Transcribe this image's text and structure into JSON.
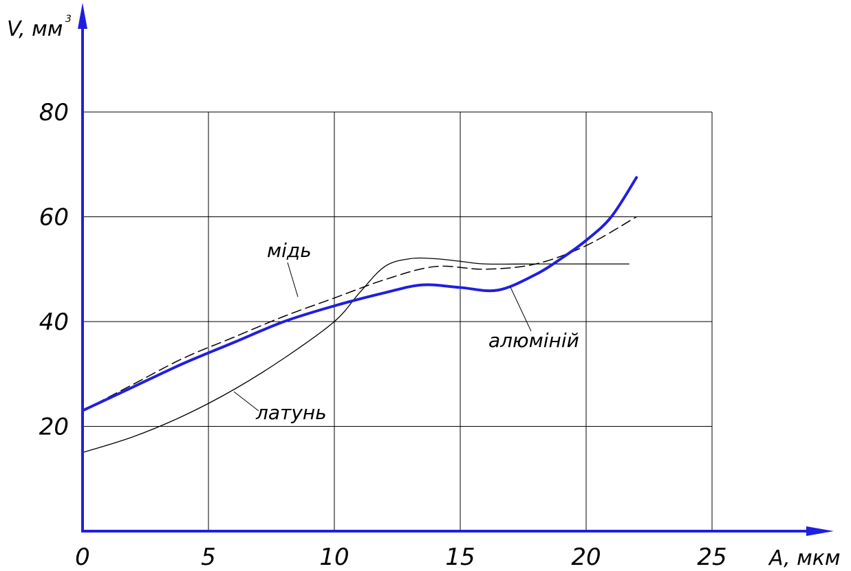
{
  "chart_data": {
    "type": "line",
    "title": "",
    "xlabel": "A, мкм",
    "ylabel": "V, мм",
    "ylabel_superscript": "3",
    "xlim": [
      0,
      25
    ],
    "ylim": [
      0,
      80
    ],
    "x_ticks": [
      0,
      5,
      10,
      15,
      20,
      25
    ],
    "x_tick_labels": [
      "0",
      "5",
      "10",
      "15",
      "20",
      "25"
    ],
    "y_ticks": [
      20,
      40,
      60,
      80
    ],
    "y_tick_labels": [
      "20",
      "40",
      "60",
      "80"
    ],
    "grid": true,
    "legend": "none",
    "axis_color": "#1f1fe0",
    "series": [
      {
        "name": "мідь",
        "style": "dashed",
        "color": "#000000",
        "x": [
          0,
          2,
          4,
          6,
          8,
          10,
          12,
          14,
          16,
          18,
          20,
          22
        ],
        "y": [
          23,
          28,
          33,
          37,
          41,
          44.5,
          48,
          50.5,
          50,
          51,
          54.5,
          60
        ]
      },
      {
        "name": "алюміній",
        "style": "solid-thick",
        "color": "#1f1fe0",
        "x": [
          0,
          2,
          4,
          6,
          8,
          10,
          12,
          13.5,
          15,
          16.5,
          18,
          19,
          20,
          21,
          22
        ],
        "y": [
          23,
          27.5,
          32,
          36,
          40,
          43,
          45.5,
          47,
          46.5,
          46,
          49,
          52,
          55.5,
          60,
          67.5
        ]
      },
      {
        "name": "латунь",
        "style": "solid-thin",
        "color": "#000000",
        "x": [
          0,
          2,
          4,
          6,
          8,
          10,
          11,
          12,
          13,
          14,
          15,
          16,
          18,
          21.7
        ],
        "y": [
          15,
          18,
          22,
          27,
          33,
          40,
          45.5,
          50.5,
          52,
          52,
          51.5,
          51,
          51,
          51
        ]
      }
    ]
  }
}
